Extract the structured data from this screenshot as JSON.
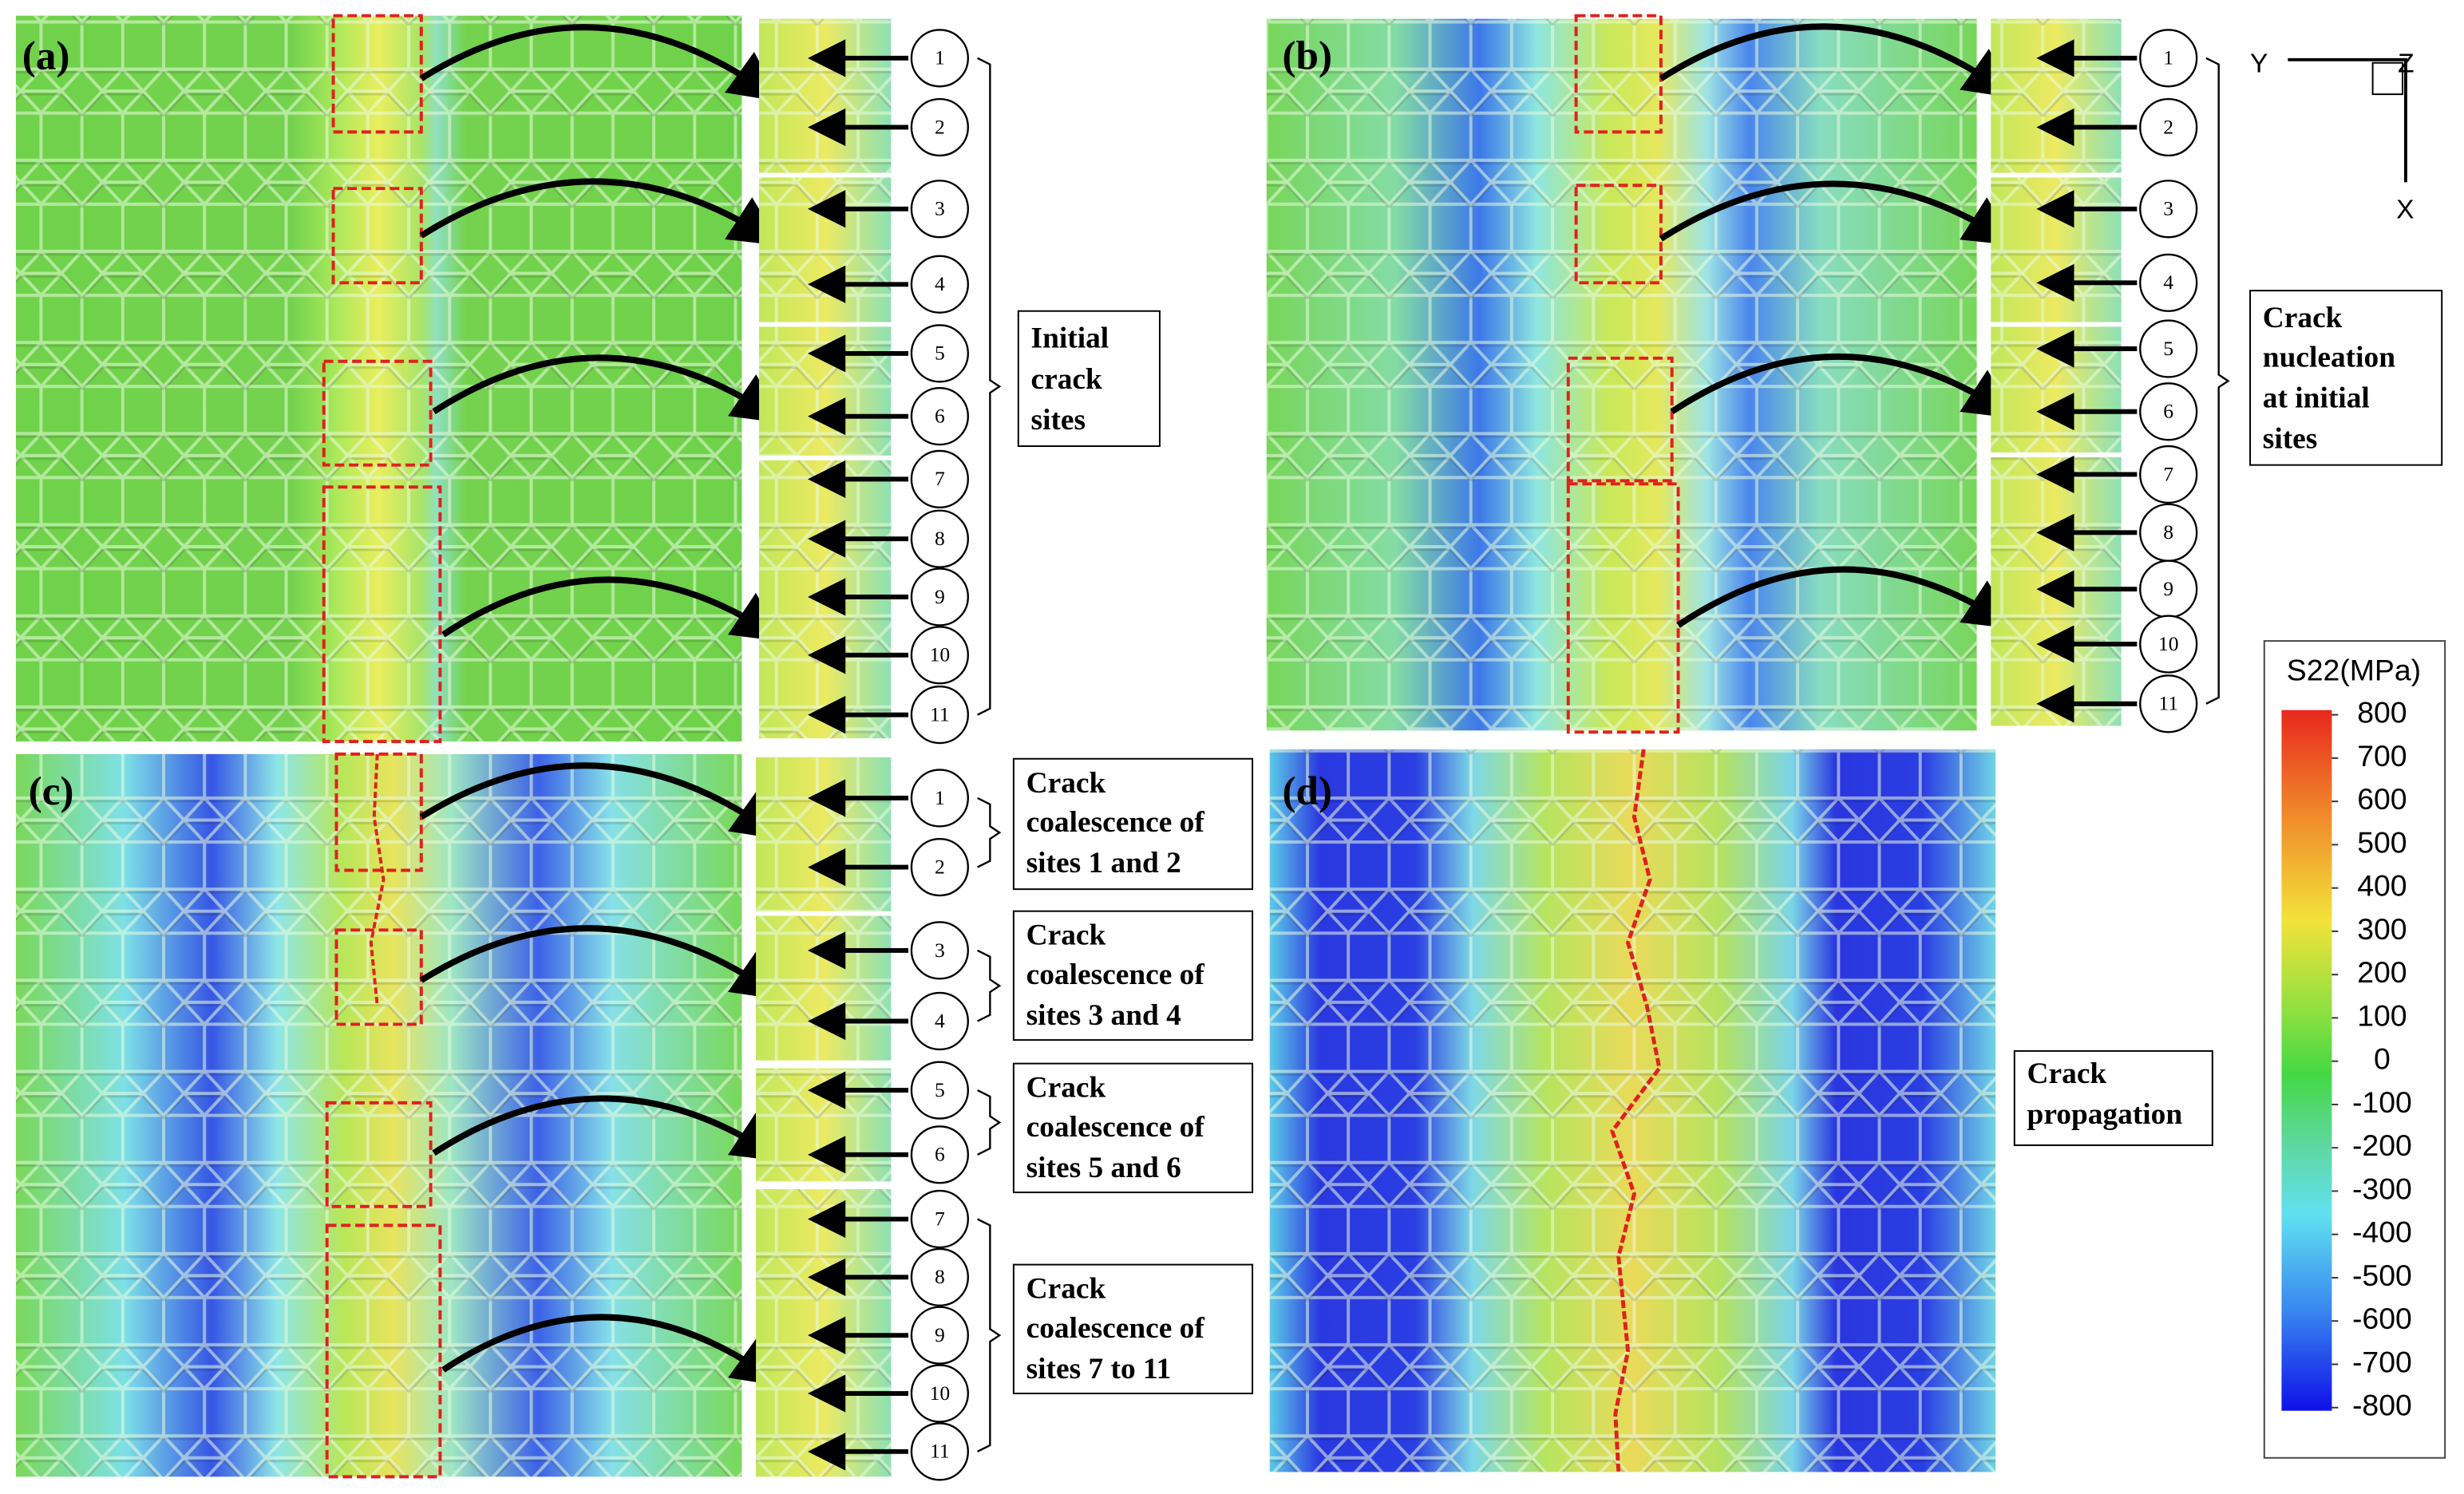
{
  "panels": [
    {
      "label": "(a)",
      "markers": [
        1,
        2,
        3,
        4,
        5,
        6,
        7,
        8,
        9,
        10,
        11
      ],
      "notes": [
        {
          "lines": [
            "Initial",
            "crack",
            "sites"
          ]
        }
      ]
    },
    {
      "label": "(b)",
      "markers": [
        1,
        2,
        3,
        4,
        5,
        6,
        7,
        8,
        9,
        10,
        11
      ],
      "notes": [
        {
          "lines": [
            "Crack",
            "nucleation",
            "at initial",
            "sites"
          ]
        }
      ]
    },
    {
      "label": "(c)",
      "markers": [
        1,
        2,
        3,
        4,
        5,
        6,
        7,
        8,
        9,
        10,
        11
      ],
      "notes": [
        {
          "lines": [
            "Crack",
            "coalescence of",
            "sites 1 and 2"
          ]
        },
        {
          "lines": [
            "Crack",
            "coalescence of",
            "sites 3 and 4"
          ]
        },
        {
          "lines": [
            "Crack",
            "coalescence of",
            "sites 5 and 6"
          ]
        },
        {
          "lines": [
            "Crack",
            "coalescence of",
            "sites 7 to 11"
          ]
        }
      ]
    },
    {
      "label": "(d)",
      "markers": [],
      "notes": [
        {
          "lines": [
            "Crack",
            "propagation"
          ]
        }
      ]
    }
  ],
  "axes": {
    "y": "Y",
    "z": "Z",
    "x": "X"
  },
  "colorbar": {
    "title": "S22(MPa)",
    "lim": [
      -800,
      800
    ],
    "ticks": [
      800,
      700,
      600,
      500,
      400,
      300,
      200,
      100,
      0,
      -100,
      -200,
      -300,
      -400,
      -500,
      -600,
      -700,
      -800
    ]
  }
}
